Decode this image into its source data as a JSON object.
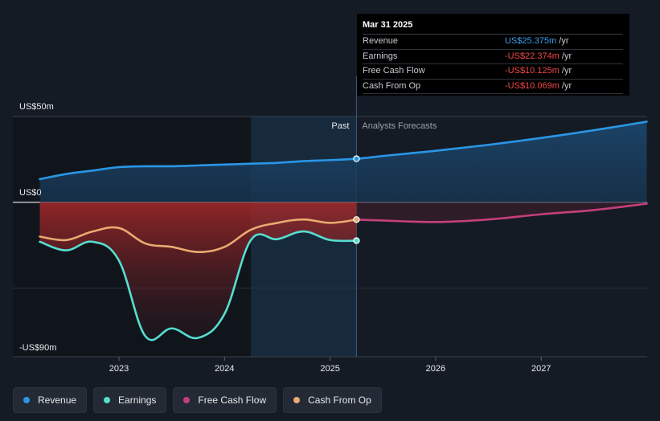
{
  "colors": {
    "revenue": "#2a96e6",
    "earnings": "#56ded0",
    "free_cash_flow": "#c4407a",
    "cash_from_op": "#e9aa70",
    "negative_value": "#f04848",
    "revenue_value": "#3aa0f0"
  },
  "chart_data": {
    "type": "line",
    "y_labels": {
      "top": "US$50m",
      "zero": "US$0",
      "bottom": "-US$90m"
    },
    "ylim": [
      -90,
      50
    ],
    "x_ticks": [
      "2023",
      "2024",
      "2025",
      "2026",
      "2027"
    ],
    "region_labels": {
      "past": "Past",
      "forecast": "Analysts Forecasts"
    },
    "grid": true,
    "legend_position": "bottom-left",
    "series": [
      {
        "name": "Revenue",
        "x": [
          2022.25,
          2022.5,
          2022.75,
          2023.0,
          2023.25,
          2023.5,
          2023.75,
          2024.0,
          2024.25,
          2024.5,
          2024.75,
          2025.0,
          2025.25,
          2025.5,
          2025.75,
          2026.0,
          2026.5,
          2027.0,
          2027.5,
          2028.0
        ],
        "values": [
          13.5,
          16.5,
          18.5,
          20.5,
          21,
          21,
          21.5,
          22,
          22.5,
          23,
          24,
          24.6,
          25.375,
          27,
          28.5,
          30,
          33.5,
          37.5,
          42,
          47
        ]
      },
      {
        "name": "Earnings",
        "x": [
          2022.25,
          2022.5,
          2022.75,
          2023.0,
          2023.25,
          2023.5,
          2023.75,
          2024.0,
          2024.25,
          2024.5,
          2024.75,
          2025.0,
          2025.25
        ],
        "values": [
          -23,
          -28,
          -23,
          -34,
          -78,
          -73.5,
          -79,
          -65,
          -22,
          -21.5,
          -17,
          -22,
          -22.374
        ]
      },
      {
        "name": "Free Cash Flow",
        "x": [
          2025.25,
          2025.5,
          2026.0,
          2026.5,
          2027.0,
          2027.5,
          2028.0
        ],
        "values": [
          -10.125,
          -10.6,
          -11.5,
          -10,
          -7,
          -4.5,
          -0.8
        ]
      },
      {
        "name": "Cash From Op",
        "x": [
          2022.25,
          2022.5,
          2022.75,
          2023.0,
          2023.25,
          2023.5,
          2023.75,
          2024.0,
          2024.25,
          2024.5,
          2024.75,
          2025.0,
          2025.25
        ],
        "values": [
          -20,
          -22,
          -17,
          -15,
          -24,
          -26,
          -29,
          -26,
          -16,
          -12,
          -10,
          -12,
          -10.069
        ]
      }
    ]
  },
  "tooltip": {
    "date": "Mar 31 2025",
    "rows": [
      {
        "label": "Revenue",
        "value": "US$25.375m",
        "unit": "/yr",
        "color_key": "revenue_value"
      },
      {
        "label": "Earnings",
        "value": "-US$22.374m",
        "unit": "/yr",
        "color_key": "negative_value"
      },
      {
        "label": "Free Cash Flow",
        "value": "-US$10.125m",
        "unit": "/yr",
        "color_key": "negative_value"
      },
      {
        "label": "Cash From Op",
        "value": "-US$10.069m",
        "unit": "/yr",
        "color_key": "negative_value"
      }
    ]
  },
  "legend": [
    {
      "label": "Revenue",
      "color_key": "revenue"
    },
    {
      "label": "Earnings",
      "color_key": "earnings"
    },
    {
      "label": "Free Cash Flow",
      "color_key": "free_cash_flow"
    },
    {
      "label": "Cash From Op",
      "color_key": "cash_from_op"
    }
  ]
}
